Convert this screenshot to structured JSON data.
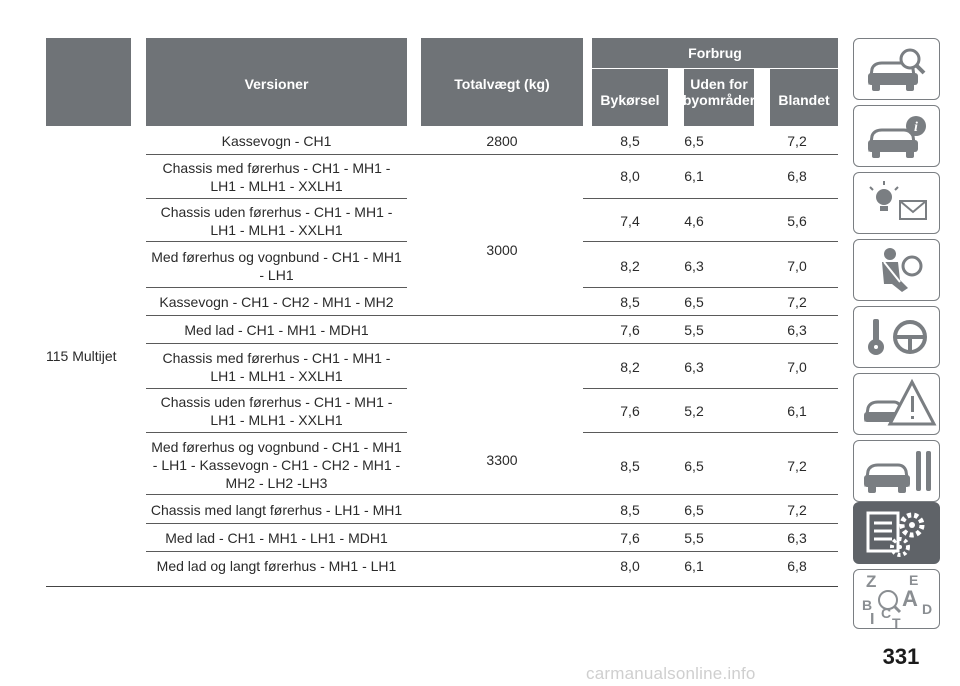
{
  "table": {
    "headers": {
      "versions": "Versioner",
      "total_weight": "Totalvægt (kg)",
      "consumption": "Forbrug",
      "urban": "Bykørsel",
      "extra_urban_line1": "Uden for",
      "extra_urban_line2": "byområder",
      "combined": "Blandet"
    },
    "model": "115 Multijet",
    "weights": [
      "2800",
      "3000",
      "3300"
    ],
    "rows": [
      {
        "version": [
          "Kassevogn - CH1"
        ],
        "urban": "8,5",
        "extra_urban": "6,5",
        "combined": "7,2"
      },
      {
        "version": [
          "Chassis med førerhus - CH1 - MH1 -",
          "LH1 - MLH1 - XXLH1"
        ],
        "urban": "8,0",
        "extra_urban": "6,1",
        "combined": "6,8"
      },
      {
        "version": [
          "Chassis uden førerhus - CH1 - MH1 -",
          "LH1 - MLH1 - XXLH1"
        ],
        "urban": "7,4",
        "extra_urban": "4,6",
        "combined": "5,6"
      },
      {
        "version": [
          "Med førerhus og vognbund - CH1 - MH1",
          "- LH1"
        ],
        "urban": "8,2",
        "extra_urban": "6,3",
        "combined": "7,0"
      },
      {
        "version": [
          "Kassevogn - CH1 - CH2 - MH1 - MH2"
        ],
        "urban": "8,5",
        "extra_urban": "6,5",
        "combined": "7,2"
      },
      {
        "version": [
          "Med lad - CH1 - MH1 - MDH1"
        ],
        "urban": "7,6",
        "extra_urban": "5,5",
        "combined": "6,3"
      },
      {
        "version": [
          "Chassis med førerhus - CH1 - MH1 -",
          "LH1 - MLH1 - XXLH1"
        ],
        "urban": "8,2",
        "extra_urban": "6,3",
        "combined": "7,0"
      },
      {
        "version": [
          "Chassis uden førerhus - CH1 - MH1 -",
          "LH1 - MLH1 - XXLH1"
        ],
        "urban": "7,6",
        "extra_urban": "5,2",
        "combined": "6,1"
      },
      {
        "version": [
          "Med førerhus og vognbund - CH1 - MH1",
          "- LH1 - Kassevogn - CH1 - CH2 - MH1 -",
          "MH2 - LH2 -LH3"
        ],
        "urban": "8,5",
        "extra_urban": "6,5",
        "combined": "7,2"
      },
      {
        "version": [
          "Chassis med langt førerhus - LH1 - MH1"
        ],
        "urban": "8,5",
        "extra_urban": "6,5",
        "combined": "7,2"
      },
      {
        "version": [
          "Med lad - CH1 - MH1 - LH1 - MDH1"
        ],
        "urban": "7,6",
        "extra_urban": "5,5",
        "combined": "6,3"
      },
      {
        "version": [
          "Med lad og langt førerhus - MH1 - LH1"
        ],
        "urban": "8,0",
        "extra_urban": "6,1",
        "combined": "6,8"
      }
    ]
  },
  "side_tabs": [
    {
      "icon": "car-magnifier-icon"
    },
    {
      "icon": "car-info-icon"
    },
    {
      "icon": "warning-lights-icon"
    },
    {
      "icon": "seatbelt-airbag-icon"
    },
    {
      "icon": "key-steering-wheel-icon"
    },
    {
      "icon": "car-warning-triangle-icon"
    },
    {
      "icon": "car-tools-icon"
    },
    {
      "icon": "technical-data-icon",
      "active": true
    },
    {
      "icon": "alphabetical-index-icon",
      "letters": [
        "Z",
        "E",
        "B",
        "A",
        "I",
        "C",
        "D",
        "T"
      ]
    }
  ],
  "page_number": "331",
  "watermark": "carmanualsonline.info",
  "colors": {
    "header_bg": "#6f7377",
    "active_tab": "#5f6368",
    "tab_border": "#7a7e82"
  }
}
